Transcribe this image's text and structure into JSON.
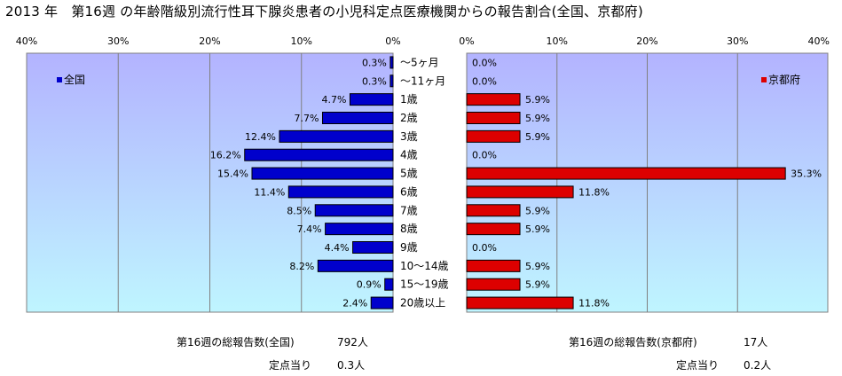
{
  "title": "2013 年　第16週 の年齢階級別流行性耳下腺炎患者の小児科定点医療機関からの報告割合(全国、京都府)",
  "colors": {
    "national": "#0000cc",
    "kyoto": "#dd0000",
    "plot_bg_top": "#b3b3ff",
    "plot_bg_bottom": "#bff5ff"
  },
  "chart_data": [
    {
      "type": "bar",
      "orientation": "horizontal",
      "direction": "right-to-left",
      "legend": "全国",
      "legend_position": "top-left",
      "xlim": [
        0,
        40
      ],
      "xticks": [
        "40%",
        "30%",
        "20%",
        "10%",
        "0%"
      ],
      "grid": true,
      "categories": [
        "～5ヶ月",
        "～11ヶ月",
        "1歳",
        "2歳",
        "3歳",
        "4歳",
        "5歳",
        "6歳",
        "7歳",
        "8歳",
        "9歳",
        "10～14歳",
        "15～19歳",
        "20歳以上"
      ],
      "values": [
        0.3,
        0.3,
        4.7,
        7.7,
        12.4,
        16.2,
        15.4,
        11.4,
        8.5,
        7.4,
        4.4,
        8.2,
        0.9,
        2.4
      ],
      "labels": [
        "0.3%",
        "0.3%",
        "4.7%",
        "7.7%",
        "12.4%",
        "16.2%",
        "15.4%",
        "11.4%",
        "8.5%",
        "7.4%",
        "4.4%",
        "8.2%",
        "0.9%",
        "2.4%"
      ]
    },
    {
      "type": "bar",
      "orientation": "horizontal",
      "direction": "left-to-right",
      "legend": "京都府",
      "legend_position": "top-right",
      "xlim": [
        0,
        40
      ],
      "xticks": [
        "0%",
        "10%",
        "20%",
        "30%",
        "40%"
      ],
      "grid": true,
      "categories": [
        "～5ヶ月",
        "～11ヶ月",
        "1歳",
        "2歳",
        "3歳",
        "4歳",
        "5歳",
        "6歳",
        "7歳",
        "8歳",
        "9歳",
        "10～14歳",
        "15～19歳",
        "20歳以上"
      ],
      "values": [
        0.0,
        0.0,
        5.9,
        5.9,
        5.9,
        0.0,
        35.3,
        11.8,
        5.9,
        5.9,
        0.0,
        5.9,
        5.9,
        11.8
      ],
      "labels": [
        "0.0%",
        "0.0%",
        "5.9%",
        "5.9%",
        "5.9%",
        "0.0%",
        "35.3%",
        "11.8%",
        "5.9%",
        "5.9%",
        "0.0%",
        "5.9%",
        "5.9%",
        "11.8%"
      ]
    }
  ],
  "footer": {
    "national_total_label": "第16週の総報告数(全国)",
    "national_total_value": "792人",
    "national_per_label": "定点当り",
    "national_per_value": "0.3人",
    "kyoto_total_label": "第16週の総報告数(京都府)",
    "kyoto_total_value": "17人",
    "kyoto_per_label": "定点当り",
    "kyoto_per_value": "0.2人"
  }
}
